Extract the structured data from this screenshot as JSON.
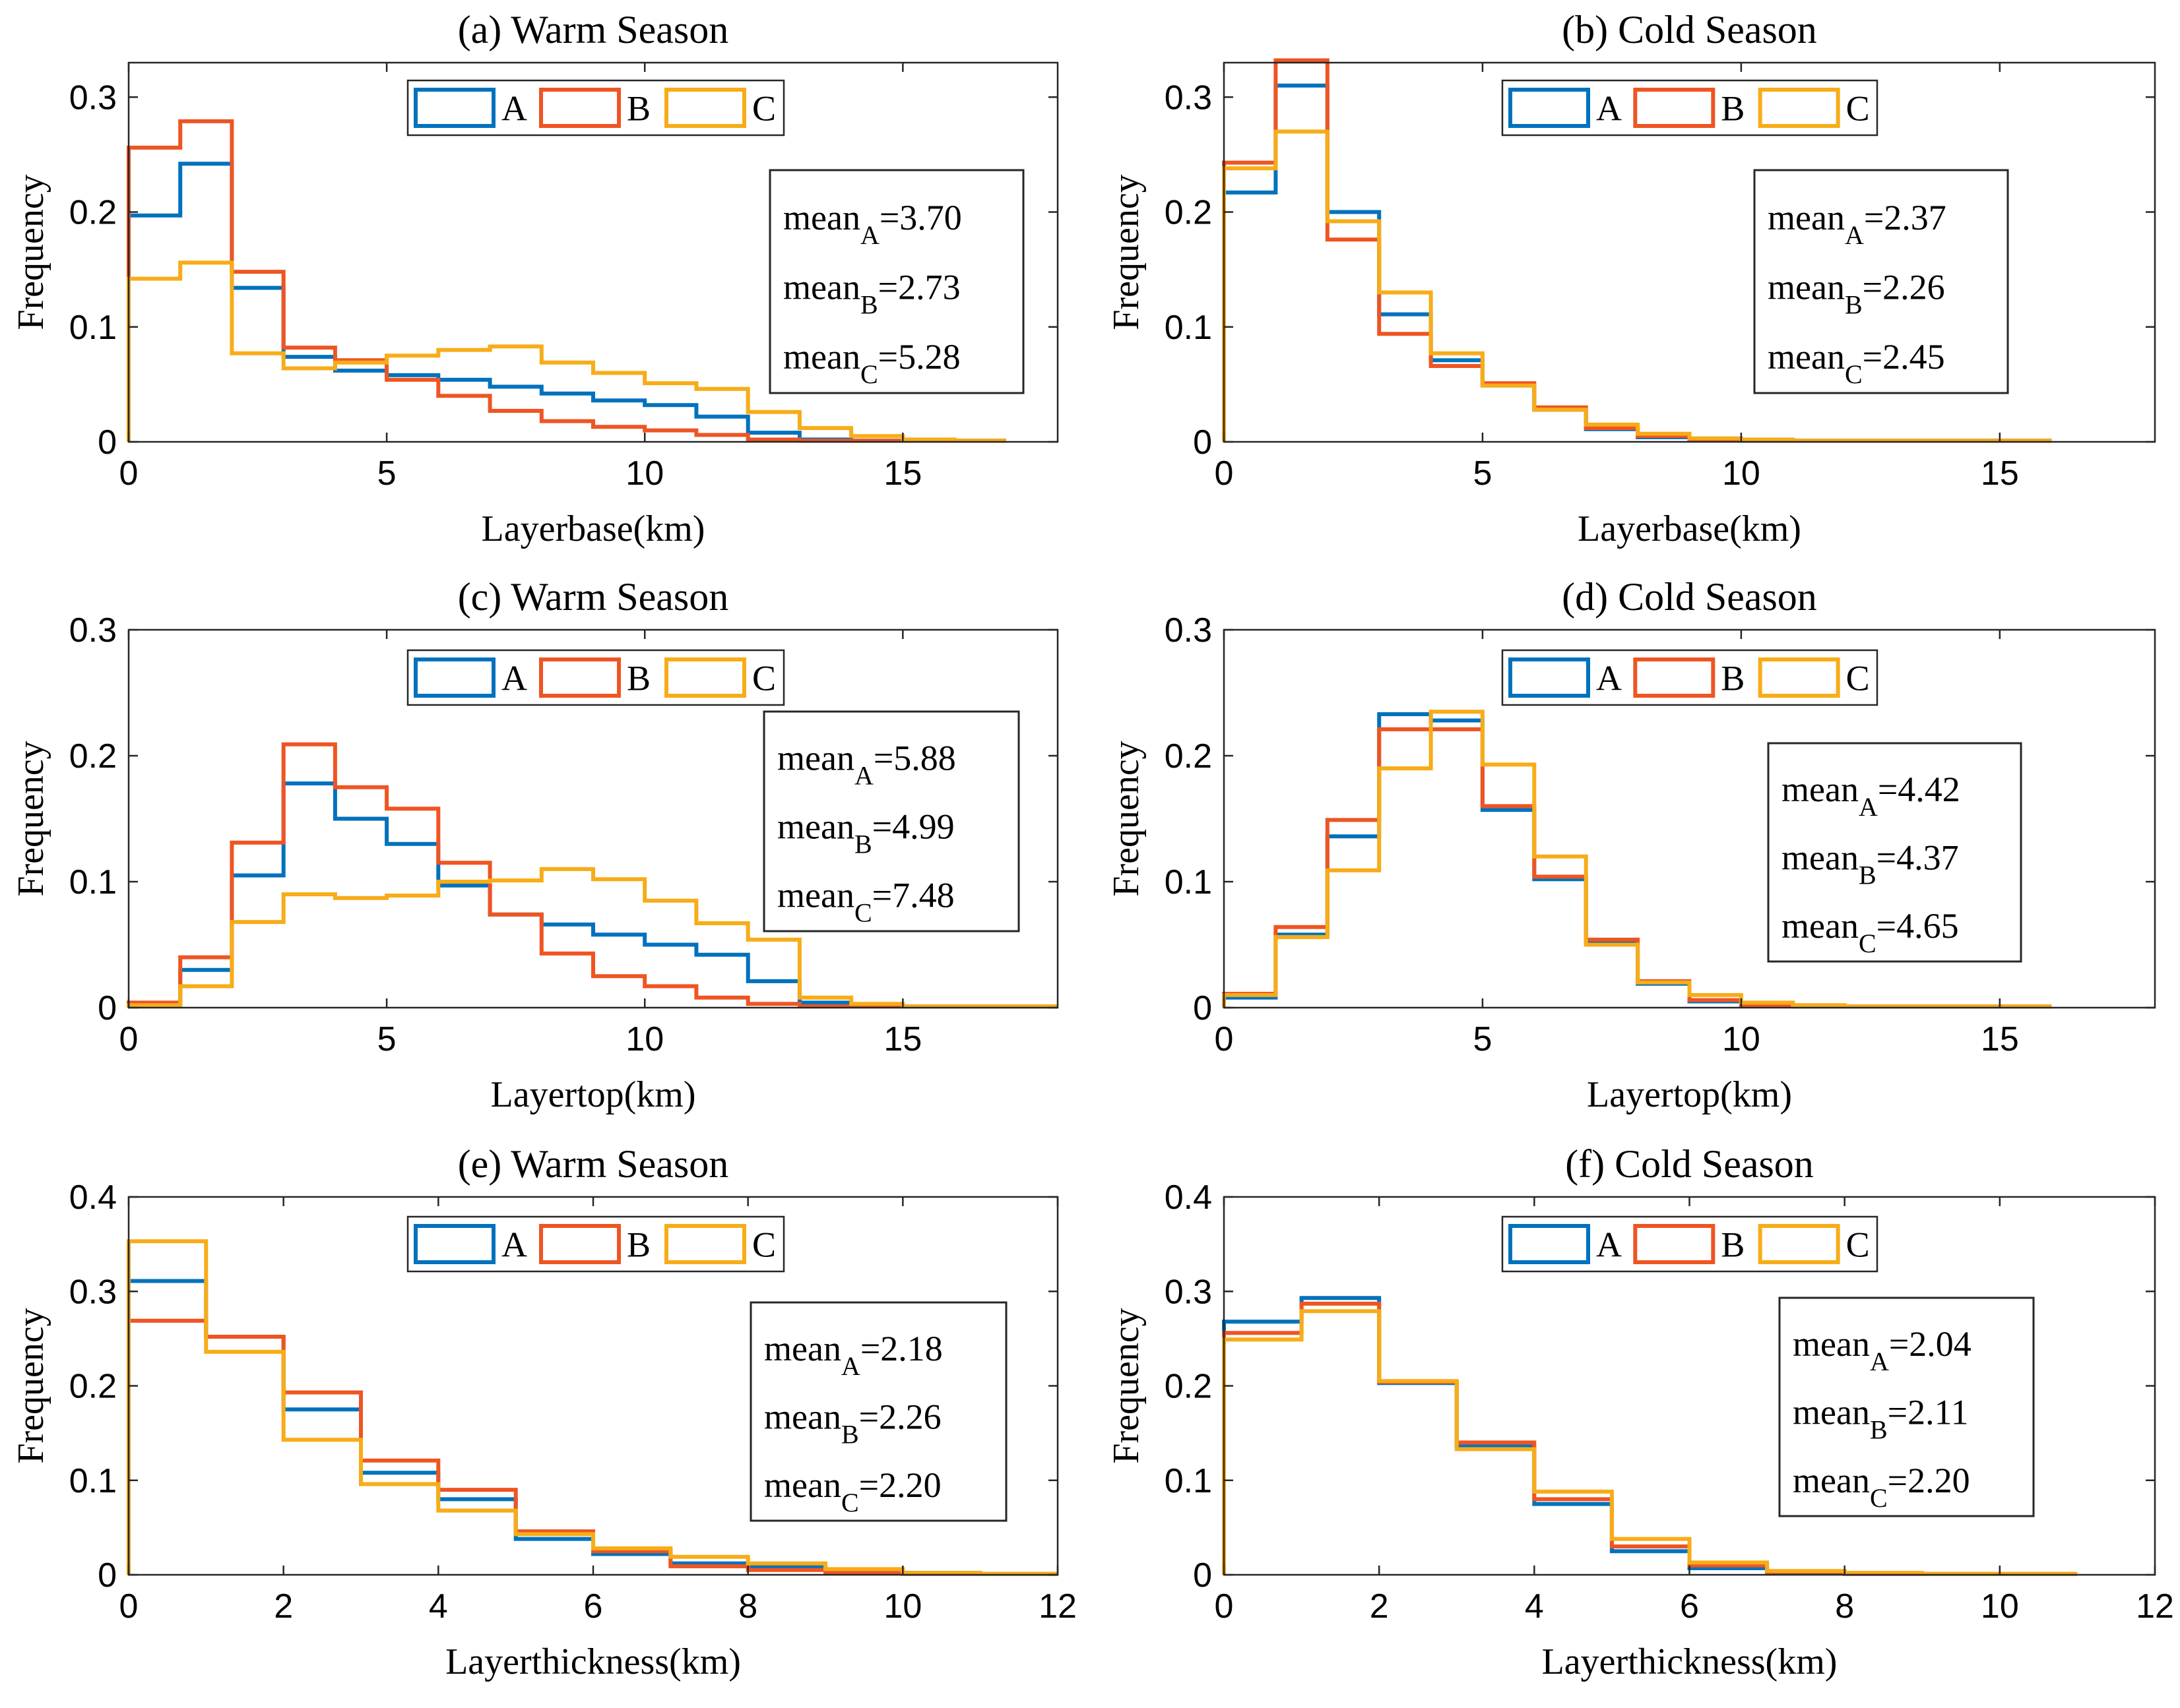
{
  "colors": {
    "A": "#0072BD",
    "B": "#EE5522",
    "C": "#F7AC18"
  },
  "chart_data": [
    {
      "type": "stairs",
      "title": "(a) Warm Season",
      "xlabel": "Layerbase(km)",
      "ylabel": "Frequency",
      "xlim": [
        0,
        18
      ],
      "ylim": [
        0,
        0.33
      ],
      "xticks": [
        0,
        5,
        10,
        15
      ],
      "yticks": [
        0,
        0.1,
        0.2,
        0.3
      ],
      "ytick_labels": [
        "0",
        "0.1",
        "0.2",
        "0.3"
      ],
      "legend": [
        "A",
        "B",
        "C"
      ],
      "bin_edges": [
        0,
        1,
        2,
        3,
        4,
        5,
        6,
        7,
        8,
        9,
        10,
        11,
        12,
        13,
        14,
        15,
        16,
        17
      ],
      "series": [
        {
          "name": "A",
          "values": [
            0.197,
            0.242,
            0.134,
            0.074,
            0.062,
            0.058,
            0.054,
            0.048,
            0.042,
            0.036,
            0.032,
            0.022,
            0.008,
            0.002,
            0.001,
            0.001,
            0.001
          ]
        },
        {
          "name": "B",
          "values": [
            0.256,
            0.279,
            0.148,
            0.082,
            0.071,
            0.054,
            0.04,
            0.027,
            0.018,
            0.013,
            0.01,
            0.006,
            0.002,
            0.001,
            0.001,
            0.001,
            0.001
          ]
        },
        {
          "name": "C",
          "values": [
            0.142,
            0.156,
            0.077,
            0.064,
            0.069,
            0.075,
            0.08,
            0.083,
            0.069,
            0.06,
            0.051,
            0.046,
            0.026,
            0.012,
            0.005,
            0.002,
            0.001
          ]
        }
      ],
      "stats": [
        "mean",
        "=3.70",
        "mean",
        "=2.73",
        "mean",
        "=5.28"
      ]
    },
    {
      "type": "stairs",
      "title": "(b) Cold Season",
      "xlabel": "Layerbase(km)",
      "ylabel": "Frequency",
      "xlim": [
        0,
        18
      ],
      "ylim": [
        0,
        0.33
      ],
      "xticks": [
        0,
        5,
        10,
        15
      ],
      "yticks": [
        0,
        0.1,
        0.2,
        0.3
      ],
      "ytick_labels": [
        "0",
        "0.1",
        "0.2",
        "0.3"
      ],
      "legend": [
        "A",
        "B",
        "C"
      ],
      "bin_edges": [
        0,
        1,
        2,
        3,
        4,
        5,
        6,
        7,
        8,
        9,
        10,
        11,
        12,
        13,
        14,
        15,
        16
      ],
      "series": [
        {
          "name": "A",
          "values": [
            0.217,
            0.31,
            0.2,
            0.111,
            0.071,
            0.049,
            0.028,
            0.011,
            0.004,
            0.002,
            0.001,
            0.001,
            0.001,
            0.001,
            0.001,
            0.001
          ]
        },
        {
          "name": "B",
          "values": [
            0.243,
            0.332,
            0.176,
            0.094,
            0.066,
            0.051,
            0.03,
            0.012,
            0.005,
            0.002,
            0.001,
            0.001,
            0.001,
            0.001,
            0.001,
            0.001
          ]
        },
        {
          "name": "C",
          "values": [
            0.238,
            0.27,
            0.192,
            0.13,
            0.077,
            0.049,
            0.028,
            0.015,
            0.007,
            0.003,
            0.002,
            0.001,
            0.001,
            0.001,
            0.001,
            0.001
          ]
        }
      ],
      "stats": [
        "mean",
        "=2.37",
        "mean",
        "=2.26",
        "mean",
        "=2.45"
      ]
    },
    {
      "type": "stairs",
      "title": "(c) Warm Season",
      "xlabel": "Layertop(km)",
      "ylabel": "Frequency",
      "xlim": [
        0,
        18
      ],
      "ylim": [
        0,
        0.3
      ],
      "xticks": [
        0,
        5,
        10,
        15
      ],
      "yticks": [
        0,
        0.1,
        0.2,
        0.3
      ],
      "ytick_labels": [
        "0",
        "0.1",
        "0.2",
        "0.3"
      ],
      "legend": [
        "A",
        "B",
        "C"
      ],
      "bin_edges": [
        0,
        1,
        2,
        3,
        4,
        5,
        6,
        7,
        8,
        9,
        10,
        11,
        12,
        13,
        14,
        15,
        16,
        17,
        18
      ],
      "series": [
        {
          "name": "A",
          "values": [
            0.003,
            0.03,
            0.105,
            0.178,
            0.15,
            0.13,
            0.097,
            0.074,
            0.066,
            0.058,
            0.05,
            0.042,
            0.021,
            0.004,
            0.002,
            0.001,
            0.001,
            0.001
          ]
        },
        {
          "name": "B",
          "values": [
            0.004,
            0.04,
            0.131,
            0.209,
            0.175,
            0.158,
            0.115,
            0.074,
            0.043,
            0.025,
            0.017,
            0.008,
            0.003,
            0.001,
            0.001,
            0.001,
            0.001,
            0.001
          ]
        },
        {
          "name": "C",
          "values": [
            0.002,
            0.017,
            0.068,
            0.09,
            0.087,
            0.089,
            0.1,
            0.101,
            0.11,
            0.102,
            0.085,
            0.067,
            0.054,
            0.008,
            0.003,
            0.001,
            0.001,
            0.001
          ]
        }
      ],
      "stats": [
        "mean",
        "=5.88",
        "mean",
        "=4.99",
        "mean",
        "=7.48"
      ]
    },
    {
      "type": "stairs",
      "title": "(d) Cold Season",
      "xlabel": "Layertop(km)",
      "ylabel": "Frequency",
      "xlim": [
        0,
        18
      ],
      "ylim": [
        0,
        0.3
      ],
      "xticks": [
        0,
        5,
        10,
        15
      ],
      "yticks": [
        0,
        0.1,
        0.2,
        0.3
      ],
      "ytick_labels": [
        "0",
        "0.1",
        "0.2",
        "0.3"
      ],
      "legend": [
        "A",
        "B",
        "C"
      ],
      "bin_edges": [
        0,
        1,
        2,
        3,
        4,
        5,
        6,
        7,
        8,
        9,
        10,
        11,
        12,
        13,
        14,
        15,
        16
      ],
      "series": [
        {
          "name": "A",
          "values": [
            0.008,
            0.058,
            0.136,
            0.233,
            0.228,
            0.157,
            0.102,
            0.052,
            0.019,
            0.005,
            0.002,
            0.001,
            0.001,
            0.001,
            0.001,
            0.001
          ]
        },
        {
          "name": "B",
          "values": [
            0.011,
            0.064,
            0.149,
            0.221,
            0.221,
            0.16,
            0.104,
            0.054,
            0.021,
            0.006,
            0.002,
            0.001,
            0.001,
            0.001,
            0.001,
            0.001
          ]
        },
        {
          "name": "C",
          "values": [
            0.01,
            0.056,
            0.109,
            0.19,
            0.235,
            0.193,
            0.12,
            0.05,
            0.02,
            0.01,
            0.004,
            0.002,
            0.001,
            0.001,
            0.001,
            0.001
          ]
        }
      ],
      "stats": [
        "mean",
        "=4.42",
        "mean",
        "=4.37",
        "mean",
        "=4.65"
      ]
    },
    {
      "type": "stairs",
      "title": "(e) Warm Season",
      "xlabel": "Layerthickness(km)",
      "ylabel": "Frequency",
      "xlim": [
        0,
        12
      ],
      "ylim": [
        0,
        0.4
      ],
      "xticks": [
        0,
        2,
        4,
        6,
        8,
        10,
        12
      ],
      "yticks": [
        0,
        0.1,
        0.2,
        0.3,
        0.4
      ],
      "ytick_labels": [
        "0",
        "0.1",
        "0.2",
        "0.3",
        "0.4"
      ],
      "legend": [
        "A",
        "B",
        "C"
      ],
      "bin_edges": [
        0,
        1,
        2,
        3,
        4,
        5,
        6,
        7,
        8,
        9,
        10,
        11,
        12
      ],
      "series": [
        {
          "name": "A",
          "values": [
            0.311,
            0.252,
            0.175,
            0.108,
            0.08,
            0.038,
            0.022,
            0.012,
            0.008,
            0.003,
            0.002,
            0.001
          ]
        },
        {
          "name": "B",
          "values": [
            0.269,
            0.252,
            0.193,
            0.121,
            0.09,
            0.046,
            0.025,
            0.009,
            0.005,
            0.002,
            0.001,
            0.001
          ]
        },
        {
          "name": "C",
          "values": [
            0.353,
            0.236,
            0.143,
            0.096,
            0.068,
            0.043,
            0.028,
            0.019,
            0.012,
            0.006,
            0.002,
            0.001
          ]
        }
      ],
      "stats": [
        "mean",
        "=2.18",
        "mean",
        "=2.26",
        "mean",
        "=2.20"
      ]
    },
    {
      "type": "stairs",
      "title": "(f) Cold Season",
      "xlabel": "Layerthickness(km)",
      "ylabel": "Frequency",
      "xlim": [
        0,
        12
      ],
      "ylim": [
        0,
        0.4
      ],
      "xticks": [
        0,
        2,
        4,
        6,
        8,
        10,
        12
      ],
      "yticks": [
        0,
        0.1,
        0.2,
        0.3,
        0.4
      ],
      "ytick_labels": [
        "0",
        "0.1",
        "0.2",
        "0.3",
        "0.4"
      ],
      "legend": [
        "A",
        "B",
        "C"
      ],
      "bin_edges": [
        0,
        1,
        2,
        3,
        4,
        5,
        6,
        7,
        8,
        9,
        10,
        11
      ],
      "series": [
        {
          "name": "A",
          "values": [
            0.268,
            0.293,
            0.203,
            0.136,
            0.075,
            0.025,
            0.007,
            0.002,
            0.001,
            0.001,
            0.001
          ]
        },
        {
          "name": "B",
          "values": [
            0.256,
            0.287,
            0.204,
            0.14,
            0.08,
            0.03,
            0.01,
            0.003,
            0.001,
            0.001,
            0.001
          ]
        },
        {
          "name": "C",
          "values": [
            0.249,
            0.279,
            0.205,
            0.133,
            0.088,
            0.038,
            0.013,
            0.004,
            0.002,
            0.001,
            0.001
          ]
        }
      ],
      "stats": [
        "mean",
        "=2.04",
        "mean",
        "=2.11",
        "mean",
        "=2.20"
      ]
    }
  ]
}
